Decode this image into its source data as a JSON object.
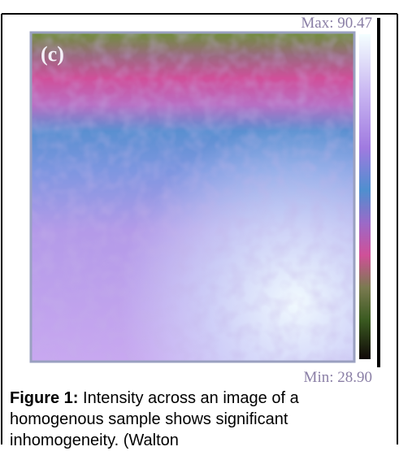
{
  "figure": {
    "panel_label": "(c)",
    "colorbar": {
      "max_label": "Max: 90.47",
      "min_label": "Min: 28.90"
    },
    "caption": {
      "label": "Figure 1:",
      "text": "Intensity across an image of a homogenous sample shows significant inhomogeneity. (Walton"
    }
  }
}
